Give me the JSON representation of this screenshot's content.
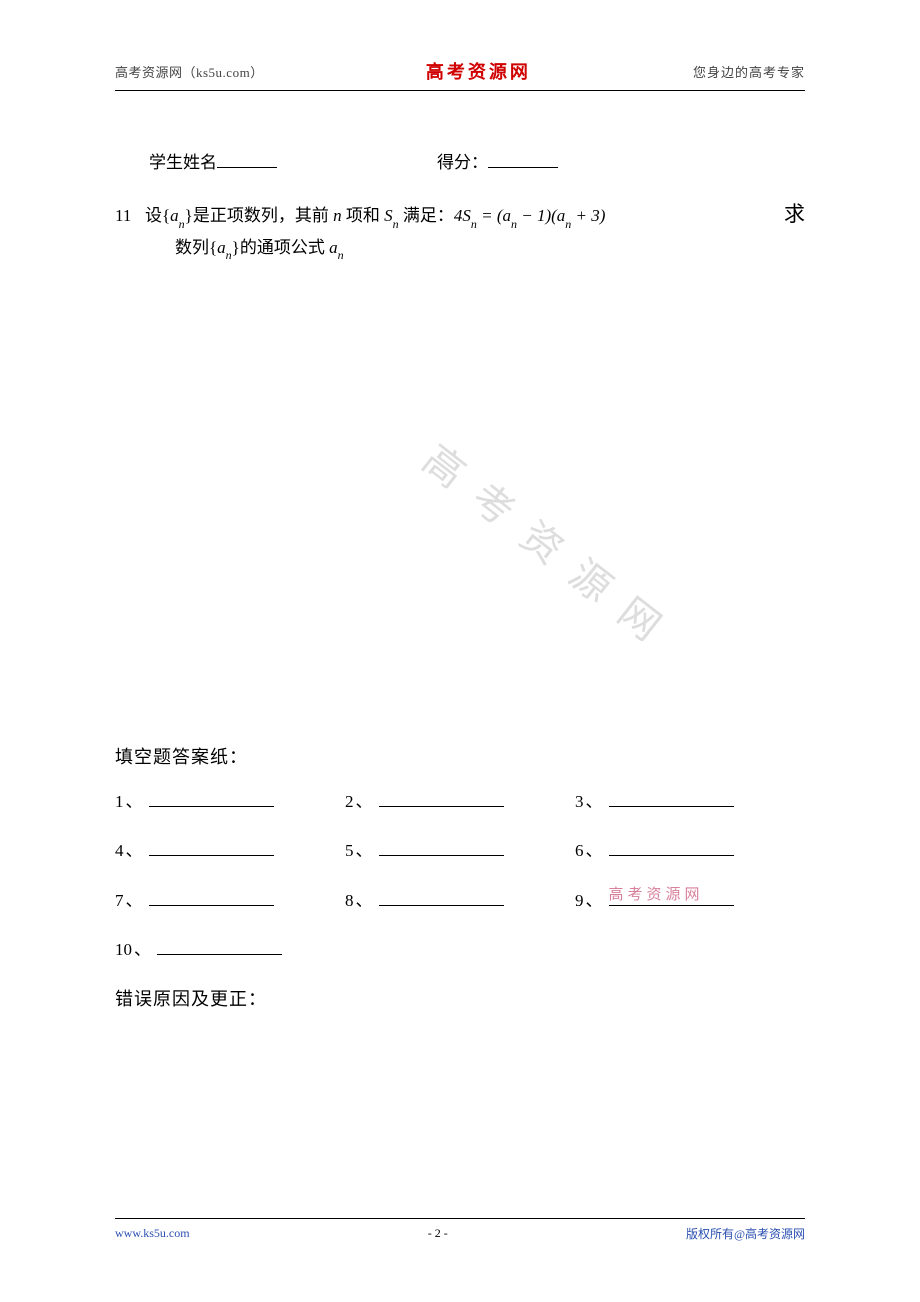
{
  "header": {
    "left": "高考资源网（ks5u.com）",
    "center": "高考资源网",
    "right": "您身边的高考专家"
  },
  "student": {
    "name_label": "学生姓名",
    "score_label": "得分："
  },
  "question": {
    "number": "11",
    "part1_a": "设",
    "brace_open": "{",
    "a_var": "a",
    "n_sub": "n",
    "brace_close": "}",
    "part1_b": "是正项数列，其前",
    "n_var": "n",
    "part1_c": "项和",
    "s_var": "S",
    "part1_d": "满足：",
    "formula": "4Sₙ = (aₙ − 1)(aₙ + 3)",
    "qiu": "求",
    "line2_a": "数列",
    "line2_b": "的通项公式",
    "a2_var": "a"
  },
  "watermark": "高考资源网",
  "answers": {
    "title": "填空题答案纸：",
    "items": [
      {
        "n": "1"
      },
      {
        "n": "2"
      },
      {
        "n": "3"
      },
      {
        "n": "4"
      },
      {
        "n": "5"
      },
      {
        "n": "6"
      },
      {
        "n": "7"
      },
      {
        "n": "8"
      },
      {
        "n": "9"
      },
      {
        "n": "10"
      }
    ],
    "overlay_9": "高考资源网"
  },
  "correction": {
    "title": "错误原因及更正："
  },
  "footer": {
    "left": "www.ks5u.com",
    "center": "- 2 -",
    "right": "版权所有@高考资源网"
  },
  "colors": {
    "brand_red": "#d00000",
    "link_blue": "#2a4fb0",
    "overlay_pink": "#d26a8a",
    "text": "#000000",
    "header_gray": "#444444",
    "watermark_gray": "rgba(120,120,120,0.25)"
  }
}
